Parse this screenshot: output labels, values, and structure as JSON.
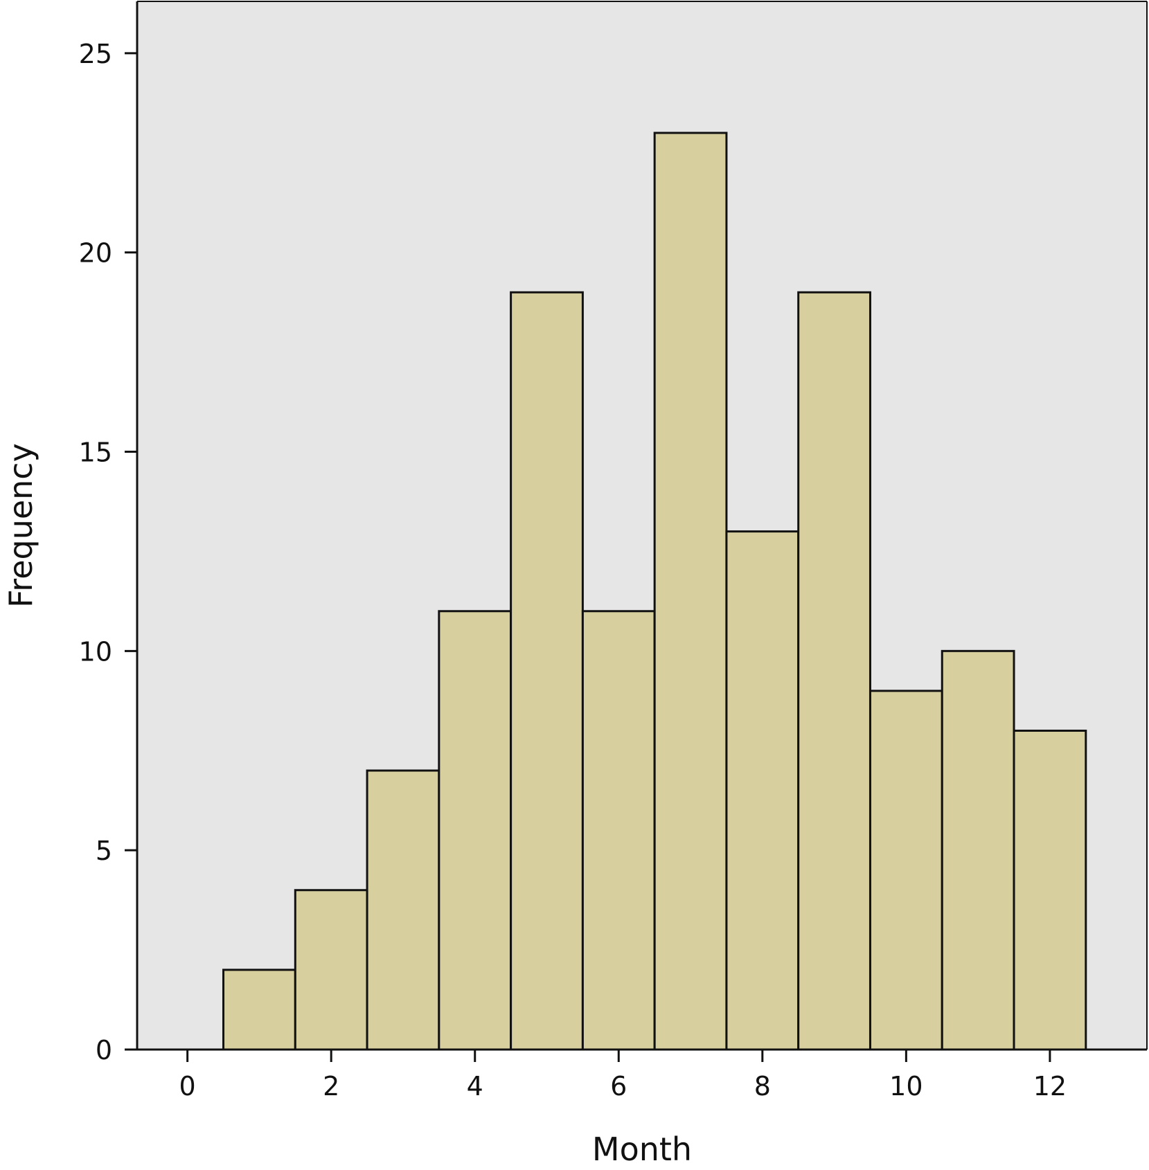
{
  "chart_data": {
    "type": "bar",
    "title": "",
    "xlabel": "Month",
    "ylabel": "Frequency",
    "x": [
      1,
      2,
      3,
      4,
      5,
      6,
      7,
      8,
      9,
      10,
      11,
      12
    ],
    "values": [
      2,
      4,
      7,
      11,
      19,
      11,
      23,
      13,
      19,
      9,
      10,
      8
    ],
    "bin_width": 1,
    "xlim": [
      -0.7,
      13.35
    ],
    "ylim": [
      0,
      26.3
    ],
    "xticks": [
      0,
      2,
      4,
      6,
      8,
      10,
      12
    ],
    "yticks": [
      0,
      5,
      10,
      15,
      20,
      25
    ],
    "grid": false,
    "legend": "none",
    "colors": {
      "bar_fill": "#d8cf9f",
      "bar_stroke": "#111111",
      "plot_background": "#e6e6e6",
      "axis": "#111111"
    }
  }
}
